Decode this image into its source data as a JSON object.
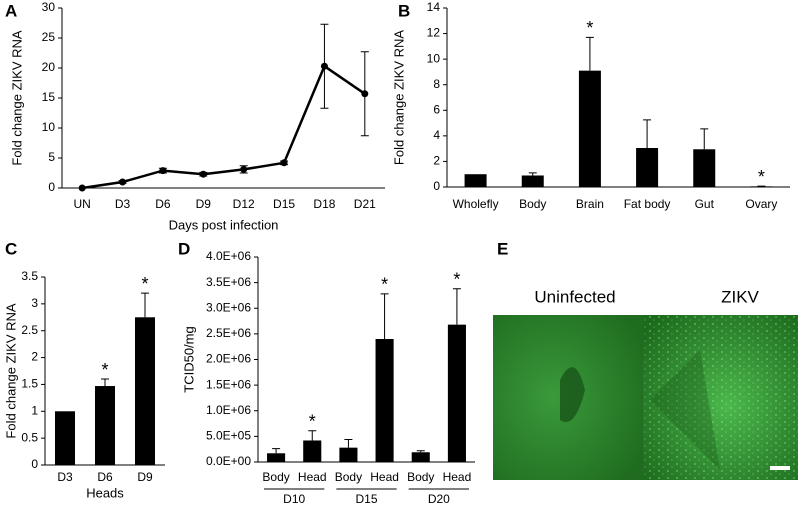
{
  "chart_data": [
    {
      "type": "line",
      "panel_label": "A",
      "ylabel": "Fold change ZIKV RNA",
      "xlabel": "Days post infection",
      "categories": [
        "UN",
        "D3",
        "D6",
        "D9",
        "D12",
        "D15",
        "D18",
        "D21"
      ],
      "values": [
        0,
        1,
        2.9,
        2.3,
        3.1,
        4.2,
        20.3,
        15.7
      ],
      "errors": [
        0,
        0.2,
        0.4,
        0.3,
        0.6,
        0.3,
        7,
        7
      ],
      "color": "#000000",
      "ylim": [
        0,
        30
      ],
      "yticks": [
        0,
        5,
        10,
        15,
        20,
        25,
        30
      ]
    },
    {
      "type": "bar",
      "panel_label": "B",
      "ylabel": "Fold change ZIKV RNA",
      "categories": [
        "Wholefly",
        "Body",
        "Brain",
        "Fat body",
        "Gut",
        "Ovary"
      ],
      "values": [
        1,
        0.9,
        9.1,
        3.05,
        2.95,
        0.05
      ],
      "errors": [
        0,
        0.2,
        2.6,
        2.2,
        1.6,
        0.02
      ],
      "annotations": [
        null,
        null,
        "*",
        null,
        null,
        "*"
      ],
      "color": "#000000",
      "ylim": [
        0,
        14
      ],
      "yticks": [
        0,
        2,
        4,
        6,
        8,
        10,
        12,
        14
      ]
    },
    {
      "type": "bar",
      "panel_label": "C",
      "ylabel": "Fold change ZIKV RNA",
      "xlabel": "Heads",
      "categories": [
        "D3",
        "D6",
        "D9"
      ],
      "values": [
        1,
        1.47,
        2.75
      ],
      "errors": [
        0,
        0.13,
        0.45
      ],
      "annotations": [
        null,
        "*",
        "*"
      ],
      "color": "#000000",
      "ylim": [
        0,
        3.5
      ],
      "yticks": [
        0,
        0.5,
        1,
        1.5,
        2,
        2.5,
        3,
        3.5
      ]
    },
    {
      "type": "bar",
      "panel_label": "D",
      "ylabel": "TCID50/mg",
      "categories": [
        "Body",
        "Head",
        "Body",
        "Head",
        "Body",
        "Head"
      ],
      "group_labels": [
        "D10",
        "D15",
        "D20"
      ],
      "values": [
        170000,
        420000,
        280000,
        2400000,
        190000,
        2680000
      ],
      "errors": [
        90000,
        190000,
        160000,
        880000,
        30000,
        700000
      ],
      "annotations": [
        null,
        "*",
        null,
        "*",
        null,
        "*"
      ],
      "color": "#000000",
      "ylim": [
        0,
        4000000
      ],
      "yticks": [
        {
          "value": 0,
          "label": "0.0E+00"
        },
        {
          "value": 500000,
          "label": "5.0E+05"
        },
        {
          "value": 1000000,
          "label": "1.0E+06"
        },
        {
          "value": 1500000,
          "label": "1.5E+06"
        },
        {
          "value": 2000000,
          "label": "2.0E+06"
        },
        {
          "value": 2500000,
          "label": "2.5E+06"
        },
        {
          "value": 3000000,
          "label": "3.0E+06"
        },
        {
          "value": 3500000,
          "label": "3.5E+06"
        },
        {
          "value": 4000000,
          "label": "4.0E+06"
        }
      ]
    }
  ],
  "image_panel": {
    "panel_label": "E",
    "labels": [
      "Uninfected",
      "ZIKV"
    ]
  }
}
